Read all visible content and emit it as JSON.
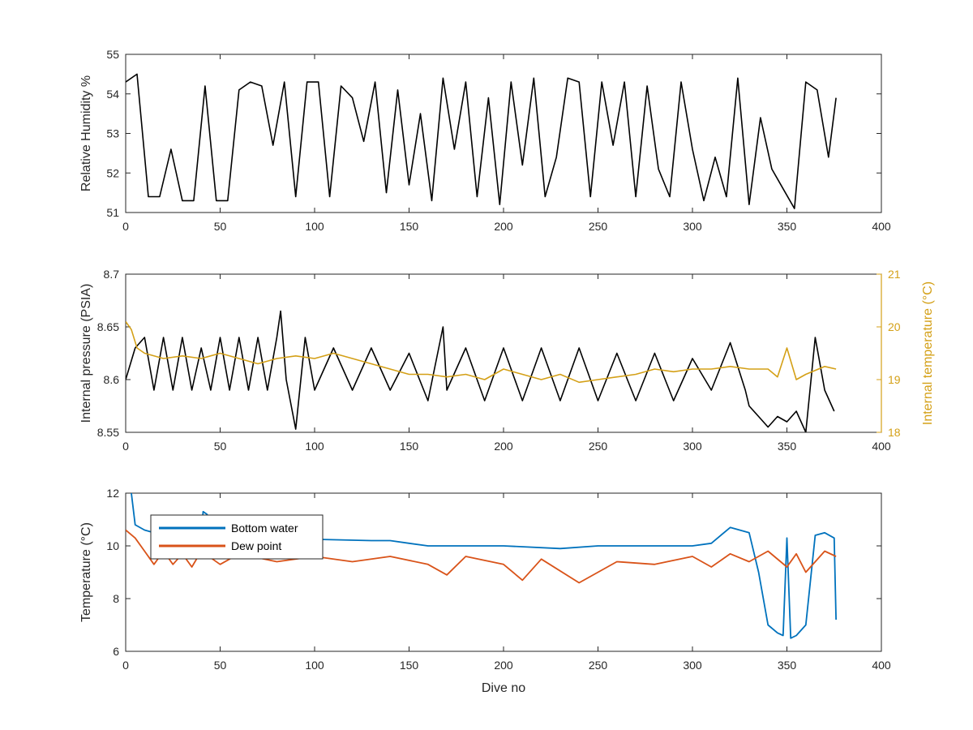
{
  "chart_data": [
    {
      "type": "line",
      "title": "",
      "xlabel": "",
      "ylabel": "Relative Humidity %",
      "xlim": [
        0,
        400
      ],
      "ylim": [
        51,
        55
      ],
      "xticks": [
        "0",
        "50",
        "100",
        "150",
        "200",
        "250",
        "300",
        "350",
        "400"
      ],
      "yticks": [
        "51",
        "52",
        "53",
        "54",
        "55"
      ],
      "series": [
        {
          "color": "#000000",
          "baseline": 54.4,
          "x": [
            0,
            6,
            12,
            18,
            24,
            30,
            36,
            42,
            48,
            54,
            60,
            66,
            72,
            78,
            84,
            90,
            96,
            102,
            108,
            114,
            120,
            126,
            132,
            138,
            144,
            150,
            156,
            162,
            168,
            174,
            180,
            186,
            192,
            198,
            204,
            210,
            216,
            222,
            228,
            234,
            240,
            246,
            252,
            258,
            264,
            270,
            276,
            282,
            288,
            294,
            300,
            306,
            312,
            318,
            324,
            330,
            336,
            342,
            348,
            354,
            360,
            366,
            372,
            376
          ],
          "y": [
            54.3,
            54.5,
            51.4,
            51.4,
            52.6,
            51.3,
            51.3,
            54.2,
            51.3,
            51.3,
            54.1,
            54.3,
            54.2,
            52.7,
            54.3,
            51.4,
            54.3,
            54.3,
            51.4,
            54.2,
            53.9,
            52.8,
            54.3,
            51.5,
            54.1,
            51.7,
            53.5,
            51.3,
            54.4,
            52.6,
            54.3,
            51.4,
            53.9,
            51.2,
            54.3,
            52.2,
            54.4,
            51.4,
            52.4,
            54.4,
            54.3,
            51.4,
            54.3,
            52.7,
            54.3,
            51.4,
            54.2,
            52.1,
            51.4,
            54.3,
            52.6,
            51.3,
            52.4,
            51.4,
            54.4,
            51.2,
            53.4,
            52.1,
            51.6,
            51.1,
            54.3,
            54.1,
            52.4,
            53.9
          ]
        }
      ]
    },
    {
      "type": "line",
      "title": "",
      "xlabel": "",
      "ylabel": "Internal pressure (PSIA)",
      "y2label": "Internal temperature (°C)",
      "xlim": [
        0,
        400
      ],
      "ylim": [
        8.55,
        8.7
      ],
      "y2lim": [
        18,
        21
      ],
      "xticks": [
        "0",
        "50",
        "100",
        "150",
        "200",
        "250",
        "300",
        "350",
        "400"
      ],
      "yticks": [
        "8.55",
        "8.6",
        "8.65",
        "8.7"
      ],
      "y2ticks": [
        "18",
        "19",
        "20",
        "21"
      ],
      "y2_color": "#d4a017",
      "series": [
        {
          "color": "#000000",
          "axis": "left",
          "x": [
            0,
            5,
            10,
            15,
            20,
            25,
            30,
            35,
            40,
            45,
            50,
            55,
            60,
            65,
            70,
            75,
            80,
            82,
            85,
            90,
            95,
            100,
            110,
            120,
            130,
            140,
            150,
            160,
            168,
            170,
            180,
            190,
            200,
            210,
            220,
            230,
            240,
            250,
            260,
            270,
            280,
            290,
            300,
            310,
            320,
            328,
            330,
            335,
            340,
            345,
            350,
            355,
            360,
            365,
            370,
            375
          ],
          "y": [
            8.6,
            8.63,
            8.64,
            8.59,
            8.64,
            8.59,
            8.64,
            8.59,
            8.63,
            8.59,
            8.64,
            8.59,
            8.64,
            8.59,
            8.64,
            8.59,
            8.64,
            8.665,
            8.6,
            8.553,
            8.64,
            8.59,
            8.63,
            8.59,
            8.63,
            8.59,
            8.625,
            8.58,
            8.65,
            8.59,
            8.63,
            8.58,
            8.63,
            8.58,
            8.63,
            8.58,
            8.63,
            8.58,
            8.625,
            8.58,
            8.625,
            8.58,
            8.62,
            8.59,
            8.635,
            8.59,
            8.575,
            8.565,
            8.555,
            8.565,
            8.56,
            8.57,
            8.55,
            8.64,
            8.59,
            8.57
          ]
        },
        {
          "color": "#d4a017",
          "axis": "right",
          "x": [
            0,
            3,
            6,
            10,
            20,
            30,
            40,
            50,
            60,
            70,
            80,
            90,
            100,
            110,
            120,
            130,
            140,
            150,
            160,
            170,
            180,
            190,
            200,
            210,
            220,
            230,
            240,
            250,
            260,
            270,
            280,
            290,
            300,
            310,
            320,
            330,
            340,
            345,
            350,
            355,
            360,
            370,
            376
          ],
          "y": [
            20.1,
            19.95,
            19.6,
            19.5,
            19.4,
            19.45,
            19.4,
            19.5,
            19.4,
            19.3,
            19.4,
            19.45,
            19.4,
            19.5,
            19.4,
            19.3,
            19.2,
            19.1,
            19.1,
            19.05,
            19.1,
            19.0,
            19.2,
            19.1,
            19.0,
            19.1,
            18.95,
            19.0,
            19.05,
            19.1,
            19.2,
            19.15,
            19.2,
            19.2,
            19.25,
            19.2,
            19.2,
            19.05,
            19.6,
            19.0,
            19.1,
            19.25,
            19.2
          ]
        }
      ]
    },
    {
      "type": "line",
      "title": "",
      "xlabel": "Dive no",
      "ylabel": "Temperature (°C)",
      "xlim": [
        0,
        400
      ],
      "ylim": [
        6,
        12
      ],
      "xticks": [
        "0",
        "50",
        "100",
        "150",
        "200",
        "250",
        "300",
        "350",
        "400"
      ],
      "yticks": [
        "6",
        "8",
        "10",
        "12"
      ],
      "legend_position": "top-left",
      "series": [
        {
          "name": "Bottom water",
          "color": "#0072bd",
          "x": [
            3,
            5,
            10,
            20,
            30,
            40,
            41,
            43,
            50,
            60,
            80,
            100,
            130,
            140,
            150,
            160,
            180,
            200,
            230,
            250,
            280,
            300,
            310,
            315,
            320,
            330,
            335,
            340,
            345,
            348,
            350,
            352,
            355,
            360,
            365,
            370,
            375,
            376
          ],
          "y": [
            12,
            10.8,
            10.6,
            10.4,
            10.3,
            10.4,
            11.3,
            11.2,
            10.4,
            10.35,
            10.3,
            10.25,
            10.2,
            10.2,
            10.1,
            10.0,
            10.0,
            10.0,
            9.9,
            10.0,
            10.0,
            10.0,
            10.1,
            10.4,
            10.7,
            10.5,
            9.0,
            7.0,
            6.7,
            6.6,
            10.3,
            6.5,
            6.6,
            7.0,
            10.4,
            10.5,
            10.3,
            7.2
          ]
        },
        {
          "name": "Dew point",
          "color": "#d95319",
          "x": [
            0,
            5,
            10,
            15,
            20,
            25,
            30,
            35,
            40,
            50,
            60,
            80,
            100,
            120,
            140,
            160,
            170,
            180,
            200,
            210,
            220,
            240,
            260,
            280,
            300,
            310,
            320,
            330,
            340,
            350,
            355,
            360,
            370,
            376
          ],
          "y": [
            10.6,
            10.3,
            9.8,
            9.3,
            9.8,
            9.3,
            9.7,
            9.2,
            9.8,
            9.3,
            9.7,
            9.4,
            9.6,
            9.4,
            9.6,
            9.3,
            8.9,
            9.6,
            9.3,
            8.7,
            9.5,
            8.6,
            9.4,
            9.3,
            9.6,
            9.2,
            9.7,
            9.4,
            9.8,
            9.2,
            9.7,
            9.0,
            9.8,
            9.6
          ]
        }
      ]
    }
  ]
}
